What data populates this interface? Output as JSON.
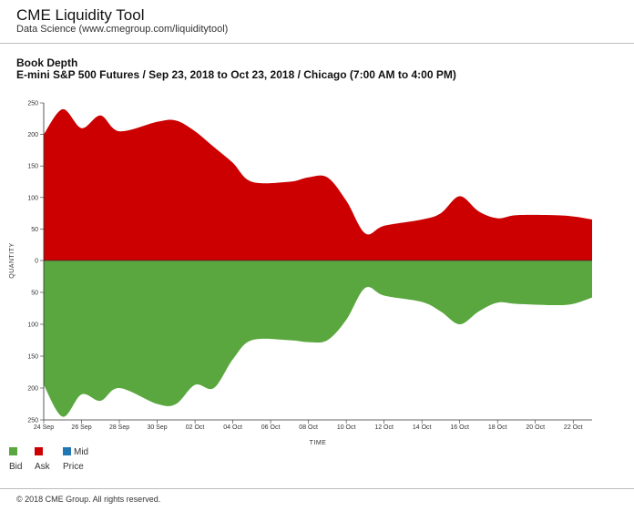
{
  "header": {
    "title": "CME Liquidity Tool",
    "subtitle": "Data Science (www.cmegroup.com/liquiditytool)"
  },
  "chart_header": {
    "title": "Book Depth",
    "subtitle": "E-mini S&P 500 Futures / Sep 23, 2018 to Oct 23, 2018 / Chicago (7:00 AM to 4:00 PM)"
  },
  "legend": {
    "items": [
      {
        "key": "bid",
        "label": "Bid",
        "color": "#5aa73f"
      },
      {
        "key": "ask",
        "label": "Ask",
        "color": "#cc0000"
      },
      {
        "key": "mid",
        "label_top": "Mid",
        "label_bottom": "Price",
        "color": "#1f77b4"
      }
    ]
  },
  "footer": {
    "copyright": "© 2018 CME Group. All rights reserved."
  },
  "chart_data": {
    "type": "area",
    "title": "Book Depth",
    "xlabel": "TIME",
    "ylabel": "QUANTITY",
    "x_range": [
      "24 Sep",
      "23 Oct"
    ],
    "x_ticks": [
      "24 Sep",
      "26 Sep",
      "28 Sep",
      "30 Sep",
      "02 Oct",
      "04 Oct",
      "06 Oct",
      "08 Oct",
      "10 Oct",
      "12 Oct",
      "14 Oct",
      "16 Oct",
      "18 Oct",
      "20 Oct",
      "22 Oct"
    ],
    "y_ticks_ask": [
      250,
      200,
      150,
      100,
      50,
      0
    ],
    "y_ticks_bid": [
      50,
      100,
      150,
      200,
      250
    ],
    "ask_range": [
      0,
      250
    ],
    "bid_range": [
      0,
      250
    ],
    "grid": false,
    "legend_position": "bottom-left",
    "colors": {
      "ask": "#cc0000",
      "bid": "#5aa73f",
      "mid": "#1f77b4"
    },
    "series": [
      {
        "name": "Ask",
        "x": [
          "24 Sep",
          "25 Sep",
          "26 Sep",
          "27 Sep",
          "28 Sep",
          "30 Sep",
          "01 Oct",
          "02 Oct",
          "03 Oct",
          "04 Oct",
          "05 Oct",
          "07 Oct",
          "08 Oct",
          "09 Oct",
          "10 Oct",
          "11 Oct",
          "12 Oct",
          "14 Oct",
          "15 Oct",
          "16 Oct",
          "17 Oct",
          "18 Oct",
          "19 Oct",
          "21 Oct",
          "22 Oct",
          "23 Oct"
        ],
        "values": [
          200,
          240,
          210,
          230,
          205,
          220,
          222,
          205,
          180,
          155,
          125,
          125,
          132,
          132,
          95,
          43,
          55,
          65,
          75,
          102,
          78,
          67,
          72,
          72,
          70,
          65
        ]
      },
      {
        "name": "Bid",
        "x": [
          "24 Sep",
          "25 Sep",
          "26 Sep",
          "27 Sep",
          "28 Sep",
          "30 Sep",
          "01 Oct",
          "02 Oct",
          "03 Oct",
          "04 Oct",
          "05 Oct",
          "07 Oct",
          "08 Oct",
          "09 Oct",
          "10 Oct",
          "11 Oct",
          "12 Oct",
          "14 Oct",
          "15 Oct",
          "16 Oct",
          "17 Oct",
          "18 Oct",
          "19 Oct",
          "21 Oct",
          "22 Oct",
          "23 Oct"
        ],
        "values": [
          195,
          245,
          210,
          220,
          200,
          225,
          225,
          195,
          200,
          155,
          125,
          125,
          128,
          125,
          93,
          43,
          55,
          65,
          80,
          100,
          80,
          66,
          68,
          70,
          68,
          58
        ]
      }
    ]
  }
}
